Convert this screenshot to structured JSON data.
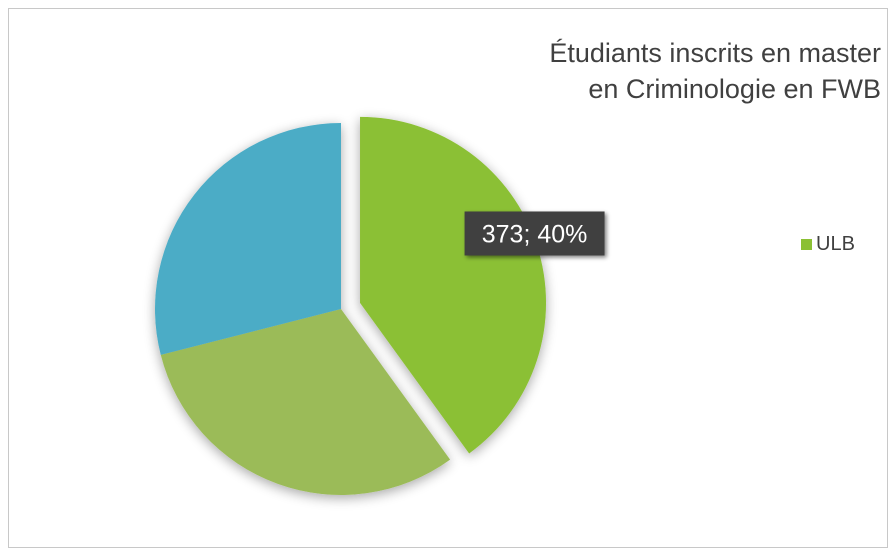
{
  "chart_data": {
    "type": "pie",
    "title_lines": [
      "Étudiants inscrits en master",
      "en Criminologie en FWB"
    ],
    "slices": [
      {
        "name": "ULB",
        "value": 373,
        "percent": 40,
        "label": "373; 40%",
        "color": "#8bc034",
        "exploded": true,
        "show_label": true
      },
      {
        "name": "",
        "value": 289,
        "percent": 31,
        "label": "",
        "color": "#9bbb59",
        "exploded": false,
        "show_label": false
      },
      {
        "name": "",
        "value": 270,
        "percent": 29,
        "label": "",
        "color": "#4bacc6",
        "exploded": false,
        "show_label": false
      }
    ],
    "legend": {
      "position": "right",
      "entries": [
        {
          "name": "ULB",
          "color": "#8bc034"
        }
      ]
    },
    "start_angle_deg": 0,
    "direction": "clockwise"
  }
}
